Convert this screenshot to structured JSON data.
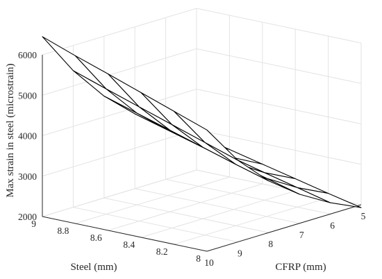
{
  "chart_data": {
    "type": "surface",
    "title": "",
    "xlabel": "Steel (mm)",
    "ylabel": "CFRP (mm)",
    "zlabel": "Max strain in steel (microstrain)",
    "x": [
      8,
      8.2,
      8.4,
      8.6,
      8.8,
      9
    ],
    "y": [
      10,
      9,
      8,
      7,
      6,
      5
    ],
    "x_ticks": [
      "8",
      "8.2",
      "8.4",
      "8.6",
      "8.8",
      "9"
    ],
    "y_ticks": [
      "10",
      "9",
      "8",
      "7",
      "6",
      "5"
    ],
    "z_ticks": [
      "2000",
      "3000",
      "4000",
      "5000",
      "6000"
    ],
    "xlim": [
      8,
      9
    ],
    "ylim": [
      5,
      10
    ],
    "zlim": [
      2000,
      6000
    ],
    "grid": true,
    "z": [
      [
        5000,
        5290,
        5580,
        5870,
        6150,
        6450
      ],
      [
        4020,
        4290,
        4560,
        4830,
        5100,
        5380
      ],
      [
        3280,
        3520,
        3770,
        4020,
        4270,
        4520
      ],
      [
        2720,
        2940,
        3160,
        3390,
        3620,
        3850
      ],
      [
        2280,
        2480,
        2680,
        2890,
        3100,
        3310
      ],
      [
        1930,
        2110,
        2300,
        2490,
        2680,
        2880
      ]
    ],
    "colors": {
      "surface_fill": "#ffffff",
      "surface_edge": "#000000",
      "grid": "#e3e3e3",
      "axis": "#262626"
    }
  }
}
